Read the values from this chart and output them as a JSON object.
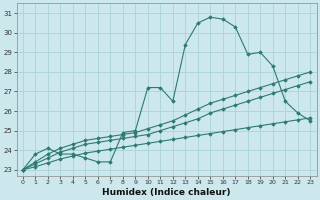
{
  "xlabel": "Humidex (Indice chaleur)",
  "bg_color": "#cce8ec",
  "grid_color": "#aad4d8",
  "line_color": "#2d7a6e",
  "xlim": [
    -0.5,
    23.5
  ],
  "ylim": [
    22.7,
    31.5
  ],
  "yticks": [
    23,
    24,
    25,
    26,
    27,
    28,
    29,
    30,
    31
  ],
  "xticks": [
    0,
    1,
    2,
    3,
    4,
    5,
    6,
    7,
    8,
    9,
    10,
    11,
    12,
    13,
    14,
    15,
    16,
    17,
    18,
    19,
    20,
    21,
    22,
    23
  ],
  "series": [
    {
      "x": [
        0,
        1,
        2,
        3,
        4,
        5,
        6,
        7,
        8,
        9,
        10,
        11,
        12,
        13,
        14,
        15,
        16,
        17,
        18,
        19,
        20,
        21,
        22,
        23
      ],
      "y": [
        23.0,
        23.8,
        24.1,
        23.8,
        23.8,
        23.6,
        23.4,
        23.4,
        24.9,
        25.0,
        27.2,
        27.2,
        26.5,
        29.4,
        30.5,
        30.8,
        30.7,
        30.3,
        28.9,
        29.0,
        28.3,
        26.5,
        25.9,
        25.5
      ]
    },
    {
      "x": [
        0,
        1,
        2,
        3,
        4,
        5,
        6,
        7,
        8,
        9,
        10,
        11,
        12,
        13,
        14,
        15,
        16,
        17,
        18,
        19,
        20,
        21,
        22,
        23
      ],
      "y": [
        23.0,
        23.4,
        23.8,
        24.1,
        24.3,
        24.5,
        24.6,
        24.7,
        24.8,
        24.9,
        25.1,
        25.3,
        25.5,
        25.8,
        26.1,
        26.4,
        26.6,
        26.8,
        27.0,
        27.2,
        27.4,
        27.6,
        27.8,
        28.0
      ]
    },
    {
      "x": [
        0,
        1,
        2,
        3,
        4,
        5,
        6,
        7,
        8,
        9,
        10,
        11,
        12,
        13,
        14,
        15,
        16,
        17,
        18,
        19,
        20,
        21,
        22,
        23
      ],
      "y": [
        23.0,
        23.3,
        23.6,
        23.9,
        24.1,
        24.3,
        24.4,
        24.5,
        24.6,
        24.7,
        24.8,
        25.0,
        25.2,
        25.4,
        25.6,
        25.9,
        26.1,
        26.3,
        26.5,
        26.7,
        26.9,
        27.1,
        27.3,
        27.5
      ]
    },
    {
      "x": [
        0,
        1,
        2,
        3,
        4,
        5,
        6,
        7,
        8,
        9,
        10,
        11,
        12,
        13,
        14,
        15,
        16,
        17,
        18,
        19,
        20,
        21,
        22,
        23
      ],
      "y": [
        23.0,
        23.15,
        23.35,
        23.55,
        23.7,
        23.85,
        23.95,
        24.05,
        24.15,
        24.25,
        24.35,
        24.45,
        24.55,
        24.65,
        24.75,
        24.85,
        24.95,
        25.05,
        25.15,
        25.25,
        25.35,
        25.45,
        25.55,
        25.65
      ]
    }
  ]
}
